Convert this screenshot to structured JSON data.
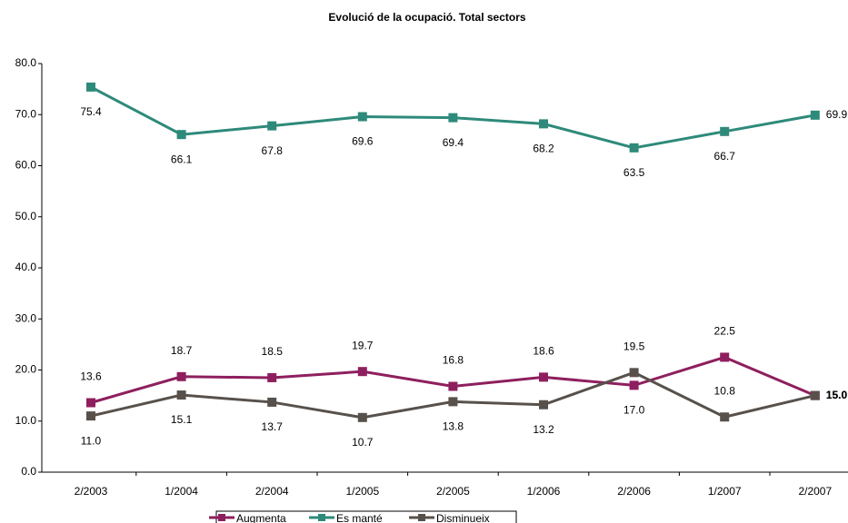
{
  "chart_data": {
    "type": "line",
    "title": "Evolució de la ocupació. Total sectors",
    "categories": [
      "2/2003",
      "1/2004",
      "2/2004",
      "1/2005",
      "2/2005",
      "1/2006",
      "2/2006",
      "1/2007",
      "2/2007"
    ],
    "series": [
      {
        "name": "Augmenta",
        "color": "#8e1f5e",
        "values": [
          13.6,
          18.7,
          18.5,
          19.7,
          16.8,
          18.6,
          17.0,
          22.5,
          15.0
        ],
        "value_labels": [
          "13.6",
          "18.7",
          "18.5",
          "19.7",
          "16.8",
          "18.6",
          "17.0",
          "22.5",
          "15.0"
        ]
      },
      {
        "name": "Es manté",
        "color": "#2e8a7a",
        "values": [
          75.4,
          66.1,
          67.8,
          69.6,
          69.4,
          68.2,
          63.5,
          66.7,
          69.9
        ],
        "value_labels": [
          "75.4",
          "66.1",
          "67.8",
          "69.6",
          "69.4",
          "68.2",
          "63.5",
          "66.7",
          "69.9"
        ]
      },
      {
        "name": "Disminueix",
        "color": "#58514b",
        "values": [
          11.0,
          15.1,
          13.7,
          10.7,
          13.8,
          13.2,
          19.5,
          10.8,
          15.0
        ],
        "value_labels": [
          "11.0",
          "15.1",
          "13.7",
          "10.7",
          "13.8",
          "13.2",
          "19.5",
          "10.8",
          "15.0"
        ]
      }
    ],
    "ylim": [
      0,
      80
    ],
    "yticks": [
      {
        "value": 0,
        "label": "0.0"
      },
      {
        "value": 10,
        "label": "10.0"
      },
      {
        "value": 20,
        "label": "20.0"
      },
      {
        "value": 30,
        "label": "30.0"
      },
      {
        "value": 40,
        "label": "40.0"
      },
      {
        "value": 50,
        "label": "50.0"
      },
      {
        "value": 60,
        "label": "60.0"
      },
      {
        "value": 70,
        "label": "70.0"
      },
      {
        "value": 80,
        "label": "80.0"
      }
    ],
    "grid": false,
    "legend": "bottom"
  }
}
